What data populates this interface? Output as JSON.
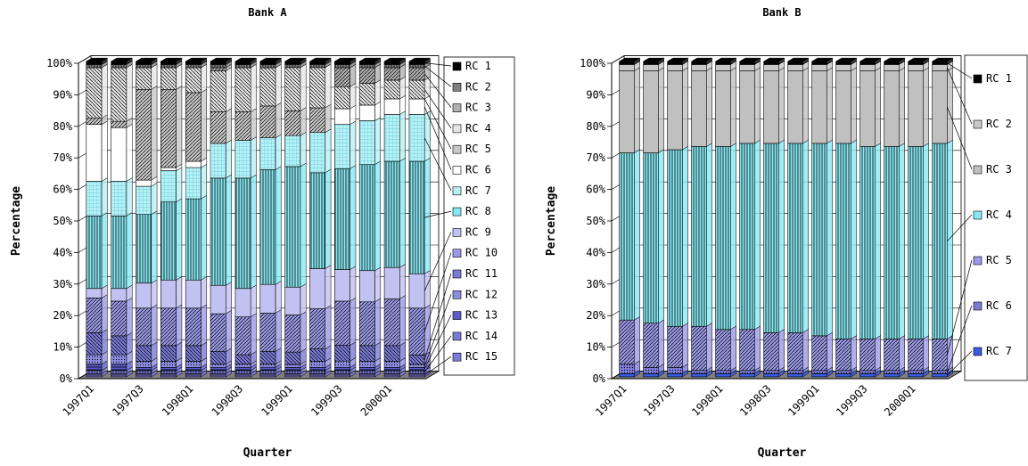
{
  "chart_data": [
    {
      "type": "bar",
      "stacked": true,
      "percent_stacked": true,
      "three_d": true,
      "title": "Bank A",
      "xlabel": "Quarter",
      "ylabel": "Percentage",
      "ylim": [
        0,
        100
      ],
      "y_ticks": [
        "0%",
        "10%",
        "20%",
        "30%",
        "40%",
        "50%",
        "60%",
        "70%",
        "80%",
        "90%",
        "100%"
      ],
      "categories": [
        "1997Q1",
        "1997Q2",
        "1997Q3",
        "1997Q4",
        "1998Q1",
        "1998Q2",
        "1998Q3",
        "1998Q4",
        "1999Q1",
        "1999Q2",
        "1999Q3",
        "1999Q4",
        "2000Q1",
        "2000Q2"
      ],
      "x_tick_labels": [
        "1997Q1",
        "1997Q3",
        "1998Q1",
        "1998Q3",
        "1999Q1",
        "1999Q3",
        "2000Q1"
      ],
      "legend_position": "right",
      "grid": true,
      "series": [
        {
          "name": "RC 15",
          "color": "#7b7bd6",
          "values": [
            1,
            1,
            1,
            1,
            1,
            1,
            1,
            1,
            1,
            1,
            1,
            1,
            1,
            1
          ]
        },
        {
          "name": "RC 14",
          "color": "#7b7bd6",
          "values": [
            1,
            1,
            1,
            1,
            1,
            1,
            1,
            1,
            1,
            1,
            1,
            1,
            1,
            1
          ]
        },
        {
          "name": "RC 13",
          "color": "#5a5ac8",
          "values": [
            2,
            2,
            1,
            1,
            1,
            1,
            1,
            1,
            1,
            1,
            1,
            1,
            1,
            1
          ]
        },
        {
          "name": "RC 12",
          "color": "#8c8ce0",
          "values": [
            3,
            3,
            2,
            2,
            2,
            1,
            1,
            1,
            1,
            2,
            2,
            2,
            2,
            1
          ]
        },
        {
          "name": "RC 11",
          "color": "#7b7bd6",
          "values": [
            7,
            6,
            5,
            5,
            5,
            4,
            3,
            4,
            4,
            4,
            5,
            5,
            5,
            3
          ]
        },
        {
          "name": "RC 10",
          "color": "#9a9ae6",
          "values": [
            11,
            11,
            12,
            12,
            12,
            12,
            12,
            12,
            12,
            13,
            14,
            14,
            15,
            15
          ]
        },
        {
          "name": "RC 9",
          "color": "#c2c2f2",
          "values": [
            3,
            4,
            8,
            9,
            9,
            9,
            9,
            9,
            9,
            13,
            10,
            10,
            10,
            11
          ]
        },
        {
          "name": "RC 8",
          "color": "#88e8f2",
          "values": [
            23,
            23,
            22,
            25,
            26,
            34,
            35,
            36,
            39,
            31,
            32,
            34,
            34,
            36
          ]
        },
        {
          "name": "RC 7",
          "color": "#b8f0f6",
          "values": [
            11,
            11,
            9,
            10,
            10,
            11,
            12,
            10,
            10,
            13,
            14,
            14,
            15,
            15
          ]
        },
        {
          "name": "RC 6",
          "color": "#ffffff",
          "values": [
            18,
            17,
            2,
            1,
            2,
            0,
            0,
            0,
            0,
            0,
            5,
            5,
            5,
            5
          ]
        },
        {
          "name": "RC 5",
          "color": "#c8c8c8",
          "values": [
            2,
            2,
            29,
            25,
            22,
            10,
            9,
            10,
            8,
            8,
            0,
            0,
            0,
            0
          ]
        },
        {
          "name": "RC 4",
          "color": "#e6e6e6",
          "values": [
            16,
            17,
            7,
            7,
            8,
            13,
            14,
            12,
            14,
            13,
            7,
            7,
            6,
            6
          ]
        },
        {
          "name": "RC 3",
          "color": "#b0b0b0",
          "values": [
            0,
            0,
            0,
            0,
            0,
            1,
            0,
            0,
            0,
            0,
            6,
            5,
            4,
            4
          ]
        },
        {
          "name": "RC 2",
          "color": "#808080",
          "values": [
            1,
            1,
            1,
            1,
            1,
            1,
            1,
            1,
            1,
            1,
            1,
            1,
            1,
            1
          ]
        },
        {
          "name": "RC 1",
          "color": "#000000",
          "values": [
            1,
            1,
            1,
            1,
            1,
            1,
            1,
            1,
            1,
            1,
            1,
            1,
            1,
            1
          ]
        }
      ]
    },
    {
      "type": "bar",
      "stacked": true,
      "percent_stacked": true,
      "three_d": true,
      "title": "Bank B",
      "xlabel": "Quarter",
      "ylabel": "Percentage",
      "ylim": [
        0,
        100
      ],
      "y_ticks": [
        "0%",
        "10%",
        "20%",
        "30%",
        "40%",
        "50%",
        "60%",
        "70%",
        "80%",
        "90%",
        "100%"
      ],
      "categories": [
        "1997Q1",
        "1997Q2",
        "1997Q3",
        "1997Q4",
        "1998Q1",
        "1998Q2",
        "1998Q3",
        "1998Q4",
        "1999Q1",
        "1999Q2",
        "1999Q3",
        "1999Q4",
        "2000Q1",
        "2000Q2"
      ],
      "x_tick_labels": [
        "1997Q1",
        "1997Q3",
        "1998Q1",
        "1998Q3",
        "1999Q1",
        "1999Q3",
        "2000Q1"
      ],
      "legend_position": "right",
      "grid": true,
      "series": [
        {
          "name": "RC 7",
          "color": "#3a5ce0",
          "values": [
            1,
            1,
            1,
            1,
            1,
            1,
            1,
            1,
            1,
            1,
            1,
            1,
            1,
            1
          ]
        },
        {
          "name": "RC 6",
          "color": "#7b7bd6",
          "values": [
            3,
            2,
            2,
            1,
            1,
            1,
            1,
            1,
            1,
            1,
            1,
            1,
            1,
            1
          ]
        },
        {
          "name": "RC 5",
          "color": "#9a9ae6",
          "values": [
            14,
            14,
            13,
            14,
            13,
            13,
            12,
            12,
            11,
            10,
            10,
            10,
            10,
            10
          ]
        },
        {
          "name": "RC 4",
          "color": "#88e8f2",
          "values": [
            53,
            54,
            56,
            57,
            58,
            59,
            60,
            60,
            61,
            62,
            61,
            61,
            61,
            62
          ]
        },
        {
          "name": "RC 3",
          "color": "#c0c0c0",
          "values": [
            26,
            26,
            25,
            24,
            24,
            23,
            23,
            23,
            23,
            23,
            24,
            24,
            24,
            23
          ]
        },
        {
          "name": "RC 2",
          "color": "#c8c8c8",
          "values": [
            2,
            2,
            2,
            2,
            2,
            2,
            2,
            2,
            2,
            2,
            2,
            2,
            2,
            2
          ]
        },
        {
          "name": "RC 1",
          "color": "#000000",
          "values": [
            1,
            1,
            1,
            1,
            1,
            1,
            1,
            1,
            1,
            1,
            1,
            1,
            1,
            1
          ]
        }
      ]
    }
  ]
}
